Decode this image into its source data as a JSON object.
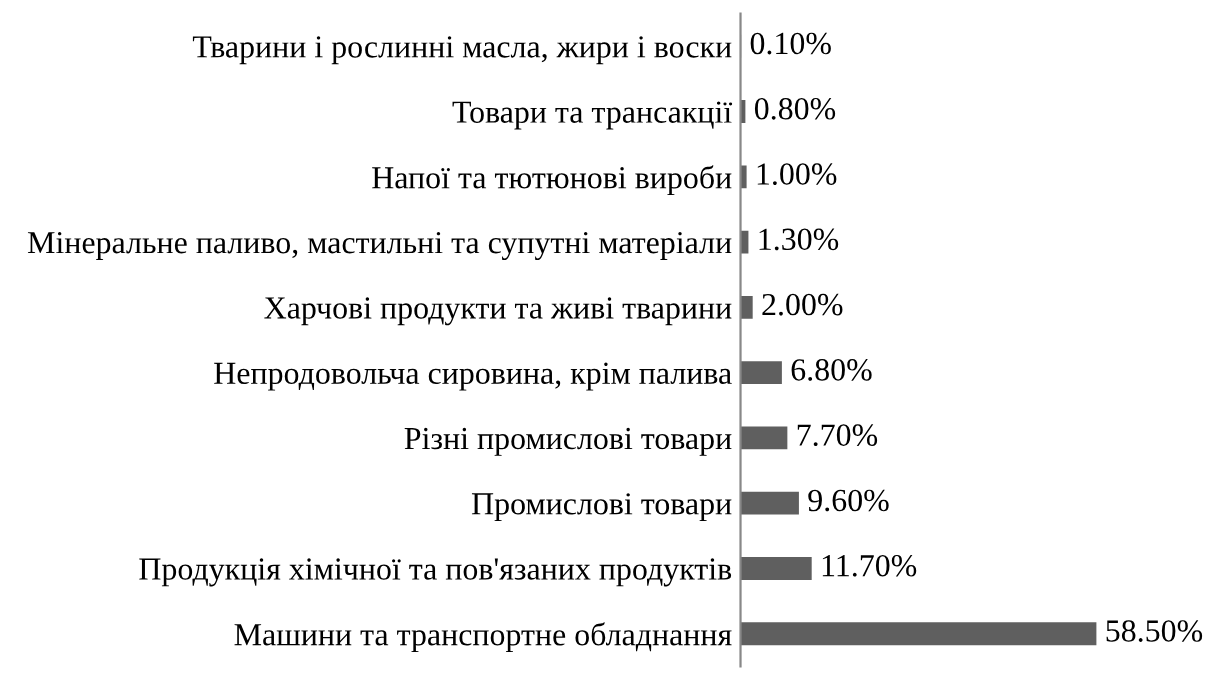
{
  "chart_data": {
    "type": "bar",
    "orientation": "horizontal",
    "tick_labels": "y",
    "grid": false,
    "legend": false,
    "categories": [
      "Тварини і рослинні масла, жири і воски",
      "Товари та трансакції",
      "Напої та тютюнові вироби",
      "Мінеральне паливо, мастильні та супутні матеріали",
      "Харчові продукти та живі тварини",
      "Непродовольча сировина, крім палива",
      "Різні промислові товари",
      "Промислові товари",
      "Продукція хімічної та пов'язаних продуктів",
      "Машини та транспортне обладнання"
    ],
    "values": [
      0.1,
      0.8,
      1.0,
      1.3,
      2.0,
      6.8,
      7.7,
      9.6,
      11.7,
      58.5
    ],
    "value_labels": [
      "0.10%",
      "0.80%",
      "1.00%",
      "1.30%",
      "2.00%",
      "6.80%",
      "7.70%",
      "9.60%",
      "11.70%",
      "58.50%"
    ],
    "color": "#5f5f5f"
  }
}
